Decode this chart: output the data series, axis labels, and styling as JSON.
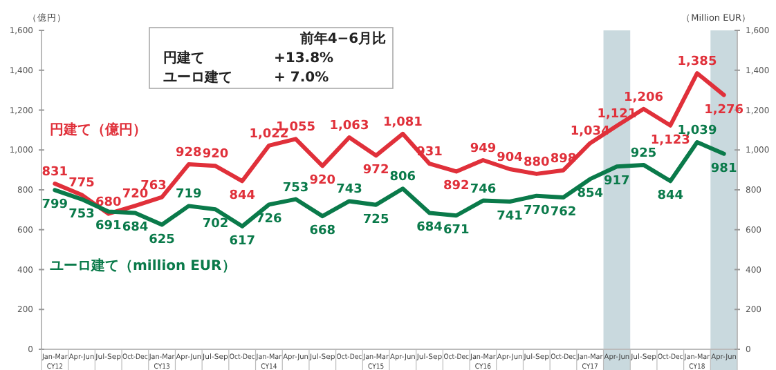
{
  "chart_data": {
    "type": "line",
    "categories": [
      "Jan-Mar CY12",
      "Apr-Jun",
      "Jul-Sep",
      "Oct-Dec",
      "Jan-Mar CY13",
      "Apr-Jun",
      "Jul-Sep",
      "Oct-Dec",
      "Jan-Mar CY14",
      "Apr-Jun",
      "Jul-Sep",
      "Oct-Dec",
      "Jan-Mar CY15",
      "Apr-Jun",
      "Jul-Sep",
      "Oct-Dec",
      "Jan-Mar CY16",
      "Apr-Jun",
      "Jul-Sep",
      "Oct-Dec",
      "Jan-Mar CY17",
      "Apr-Jun",
      "Jul-Sep",
      "Oct-Dec",
      "Jan-Mar CY18",
      "Apr-Jun"
    ],
    "series": [
      {
        "name": "円建て（億円）",
        "color": "#e0303a",
        "values": [
          831,
          775,
          680,
          720,
          763,
          928,
          920,
          844,
          1022,
          1055,
          920,
          1063,
          972,
          1081,
          931,
          892,
          949,
          904,
          880,
          898,
          1034,
          1121,
          1206,
          1123,
          1385,
          1276
        ],
        "value_labels": [
          "831",
          "775",
          "680",
          "720",
          "763",
          "928",
          "920",
          "844",
          "1,022",
          "1,055",
          "920",
          "1,063",
          "972",
          "1,081",
          "931",
          "892",
          "949",
          "904",
          "880",
          "898",
          "1,034",
          "1,121",
          "1,206",
          "1,123",
          "1,385",
          "1,276"
        ]
      },
      {
        "name": "ユーロ建て（million EUR）",
        "color": "#0a7a4a",
        "axis": "y2",
        "values": [
          799,
          753,
          691,
          684,
          625,
          719,
          702,
          617,
          726,
          753,
          668,
          743,
          725,
          806,
          684,
          671,
          746,
          741,
          770,
          762,
          854,
          917,
          925,
          844,
          1039,
          981
        ],
        "value_labels": [
          "799",
          "753",
          "691",
          "684",
          "625",
          "719",
          "702",
          "617",
          "726",
          "753",
          "668",
          "743",
          "725",
          "806",
          "684",
          "671",
          "746",
          "741",
          "770",
          "762",
          "854",
          "917",
          "925",
          "844",
          "1,039",
          "981"
        ]
      }
    ],
    "ylabel": "（億円）",
    "y2label": "（Million EUR）",
    "ylim": [
      0,
      1600
    ],
    "yticks": [
      0,
      200,
      400,
      600,
      800,
      {
        "value": 1000,
        "label": "1,000"
      },
      {
        "value": 1200,
        "label": "1,200"
      },
      {
        "value": 1400,
        "label": "1,400"
      },
      {
        "value": 1600,
        "label": "1,600"
      }
    ],
    "y2lim": [
      0,
      1600
    ],
    "y2ticks": [
      0,
      200,
      400,
      600,
      800,
      {
        "value": 1000,
        "label": "1,000"
      },
      {
        "value": 1200,
        "label": "1,200"
      },
      {
        "value": 1400,
        "label": "1,400"
      },
      {
        "value": 1600,
        "label": "1,600"
      }
    ],
    "annotations": [
      "前年4−6月比",
      "円建て",
      "+13.8%",
      "ユーロ建て",
      "+ 7.0%"
    ],
    "marker": "none",
    "line_style": "solid"
  }
}
